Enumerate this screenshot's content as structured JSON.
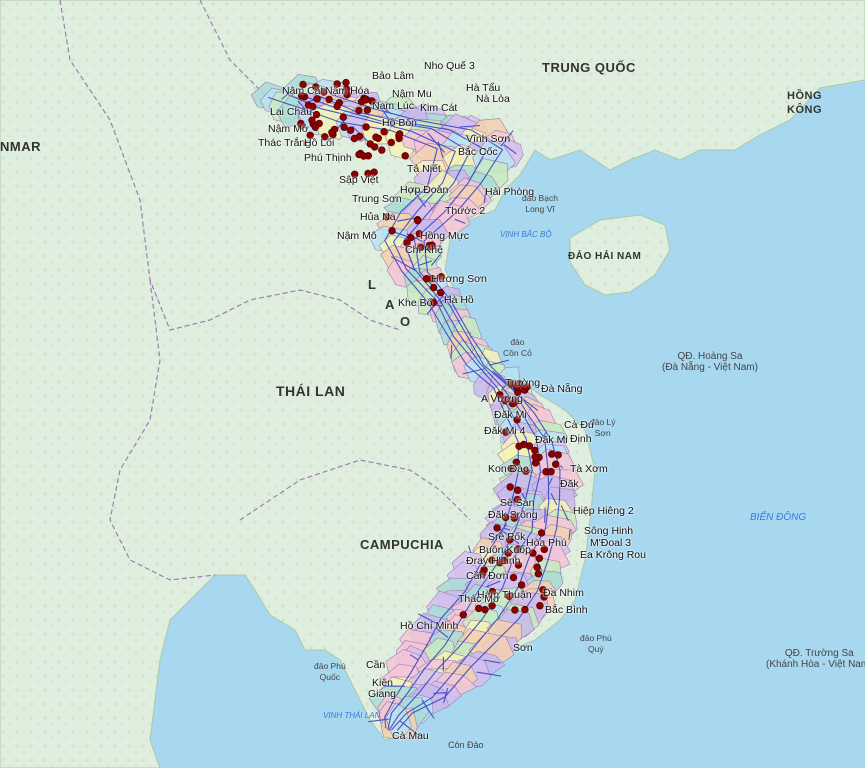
{
  "map": {
    "colors": {
      "sea": "#a8d8f0",
      "land": "#dfeede",
      "land_dark": "#c9e4c5",
      "border": "#9c7fb0",
      "road": "#2b3fbf",
      "marker": "#8b0000",
      "province_palette": [
        "#c9b8ec",
        "#f4c6d6",
        "#b9e3f2",
        "#f6f3b4",
        "#c8eac0",
        "#f3d0b0",
        "#d5c0ef",
        "#a9dcd6"
      ]
    },
    "countries": {
      "china": "TRUNG QUỐC",
      "myanmar": "NMAR",
      "thailand": "THÁI LAN",
      "cambodia": "CAMPUCHIA",
      "laos": [
        "L",
        "A",
        "O"
      ],
      "hongkong": [
        "HỒNG",
        "KÔNG"
      ],
      "hainan": "ĐẢO HẢI NAM"
    },
    "seas": {
      "gulf_tonkin": "VỊNH BẮC BỘ",
      "east_sea": "BIỂN ĐÔNG",
      "gulf_thailand": "VỊNH THÁI LAN"
    },
    "islands": {
      "bach_long_vi": [
        "đảo Bạch",
        "Long Vĩ"
      ],
      "con_co": [
        "đảo",
        "Cồn Cỏ"
      ],
      "ly_son": [
        "đảo Lý",
        "Sơn"
      ],
      "hoang_sa": [
        "QĐ. Hoàng Sa",
        "(Đà Nẵng - Việt Nam)"
      ],
      "truong_sa": [
        "QĐ. Trường Sa",
        "(Khánh Hòa - Việt Nam)"
      ],
      "phu_quy": [
        "đảo Phú",
        "Quý"
      ],
      "phu_quoc": [
        "đảo Phú",
        "Quốc"
      ],
      "con_dao": "Côn Đảo"
    },
    "places": [
      "Nho Quế 3",
      "Bảo Lâm",
      "Hà Tẩu",
      "Nà Lòa",
      "Nậm Cát",
      "Nậm Hóa",
      "Nậm Mu",
      "Nam Lúc",
      "Kim Cát",
      "Lai Châu",
      "Nậm Mở",
      "Hồ Bốn",
      "Thác Trắng",
      "Hồ Lối",
      "Vĩnh Sơn",
      "Bắc Cốc",
      "Phú Thịnh",
      "Tả Niết",
      "Sập Việt",
      "Hải Phòng",
      "Hợp Đoàn",
      "Trung Sơn",
      "Thước 2",
      "Hủa Na",
      "Nậm Mô",
      "Hồng Mực",
      "Chí Khê",
      "Hương Sơn",
      "Khe Bố",
      "Hà Hồ",
      "Trường",
      "Đà Nẵng",
      "A Vương",
      "Đăk Mi",
      "Cà Đú",
      "Đăk Mi 4",
      "Đăk Mi",
      "Định",
      "Kon Đào",
      "Tà Xơm",
      "Đăk",
      "Sê San",
      "Đăk Srông",
      "Hiệp Hiêng 2",
      "Sông Hinh",
      "Srê Pốk",
      "Hòa Phú",
      "M'Đoal 3",
      "Buôn Kuốp",
      "Ea Krông Rou",
      "Đray H'Linh",
      "Cần Đơn",
      "Hàm Thuận",
      "Bắc Bình",
      "Thác Mơ",
      "Đa Nhim",
      "Hồ Chí Minh",
      "Cần",
      "Kiên",
      "Giang",
      "Cà Mau",
      "Sơn"
    ],
    "markers": 140
  }
}
